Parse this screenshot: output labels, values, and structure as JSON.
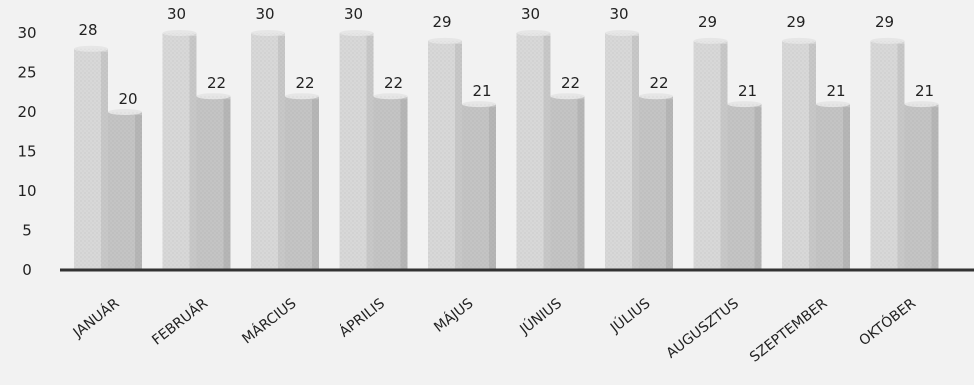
{
  "chart_data": {
    "type": "bar",
    "categories": [
      "JANUÁR",
      "FEBRUÁR",
      "MÁRCIUS",
      "ÁPRILIS",
      "MÁJUS",
      "JÚNIUS",
      "JÚLIUS",
      "AUGUSZTUS",
      "SZEPTEMBER",
      "OKTÓBER"
    ],
    "series": [
      {
        "values": [
          28,
          30,
          30,
          30,
          29,
          30,
          30,
          29,
          29,
          29
        ]
      },
      {
        "values": [
          20,
          22,
          22,
          22,
          21,
          22,
          22,
          21,
          21,
          21
        ]
      }
    ],
    "ylim": [
      0,
      30
    ],
    "yticks": [
      0,
      5,
      10,
      15,
      20,
      25,
      30
    ],
    "grid": false,
    "legend": false,
    "colors": [
      "#d8d8d8",
      "#c4c4c4"
    ]
  }
}
